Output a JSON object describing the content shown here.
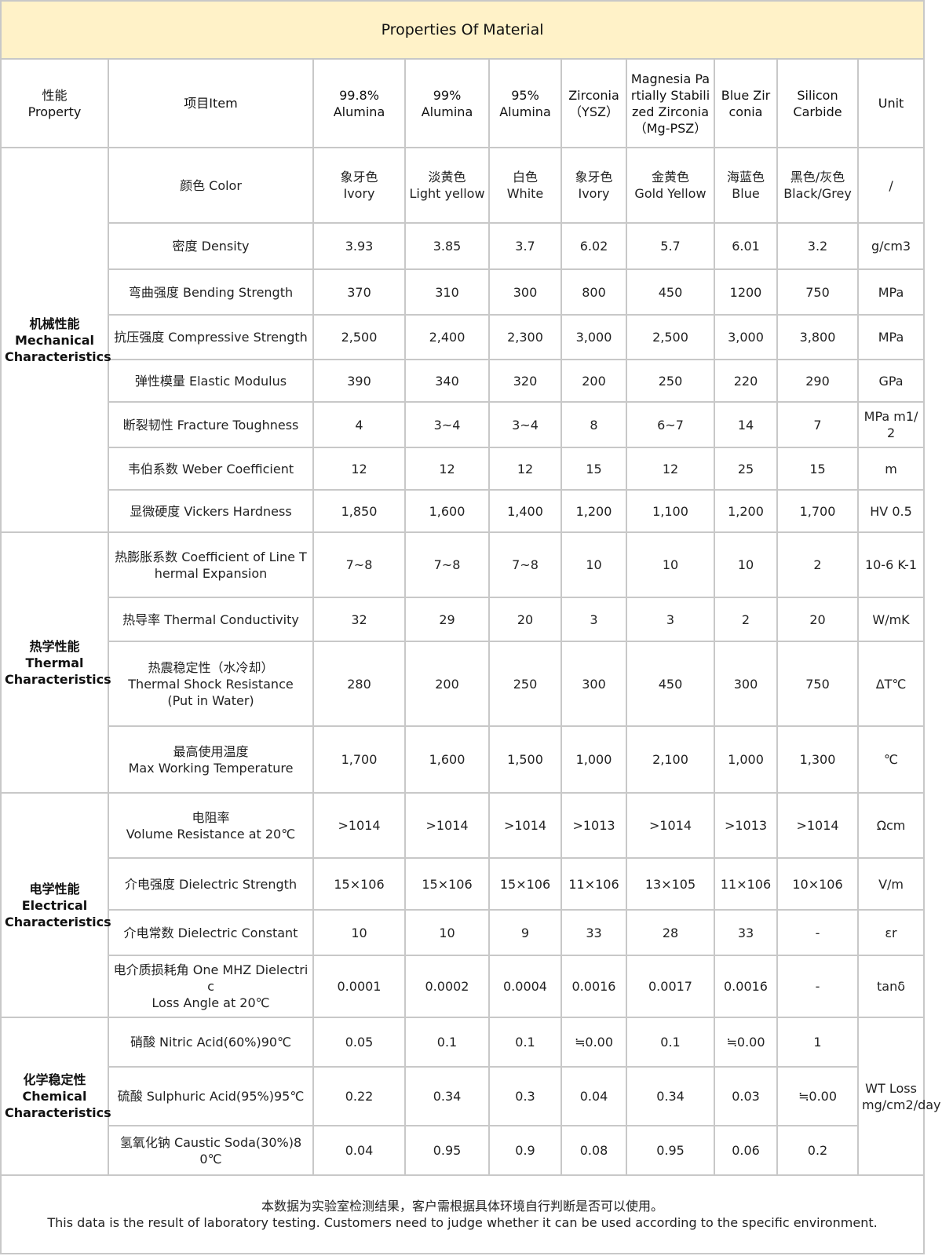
{
  "title": "Properties Of Material",
  "header": {
    "property": "性能\nProperty",
    "item": "项目Item",
    "materials": [
      "99.8%\nAlumina",
      "99%\nAlumina",
      "95%\nAlumina",
      "Zirconia\n（YSZ）",
      "Magnesia Partially Stabilized Zirconia（Mg-PSZ）",
      "Blue Zirconia",
      "Silicon\nCarbide"
    ],
    "unit": "Unit"
  },
  "groups": [
    {
      "name": "机械性能\nMechanical Characteristics",
      "rows": [
        {
          "item": "颜色 Color",
          "values": [
            "象牙色\nIvory",
            "淡黄色\nLight yellow",
            "白色\nWhite",
            "象牙色\nIvory",
            "金黄色\nGold Yellow",
            "海蓝色\nBlue",
            "黑色/灰色\nBlack/Grey"
          ],
          "unit": "/"
        },
        {
          "item": "密度 Density",
          "values": [
            "3.93",
            "3.85",
            "3.7",
            "6.02",
            "5.7",
            "6.01",
            "3.2"
          ],
          "unit": "g/cm3"
        },
        {
          "item": "弯曲强度 Bending Strength",
          "values": [
            "370",
            "310",
            "300",
            "800",
            "450",
            "1200",
            "750"
          ],
          "unit": "MPa"
        },
        {
          "item": "抗压强度 Compressive Strength",
          "values": [
            "2,500",
            "2,400",
            "2,300",
            "3,000",
            "2,500",
            "3,000",
            "3,800"
          ],
          "unit": "MPa"
        },
        {
          "item": "弹性模量 Elastic Modulus",
          "values": [
            "390",
            "340",
            "320",
            "200",
            "250",
            "220",
            "290"
          ],
          "unit": "GPa"
        },
        {
          "item": "断裂韧性 Fracture Toughness",
          "values": [
            "4",
            "3~4",
            "3~4",
            "8",
            "6~7",
            "14",
            "7"
          ],
          "unit": "MPa m1/2"
        },
        {
          "item": "韦伯系数 Weber Coefficient",
          "values": [
            "12",
            "12",
            "12",
            "15",
            "12",
            "25",
            "15"
          ],
          "unit": "m"
        },
        {
          "item": "显微硬度 Vickers Hardness",
          "values": [
            "1,850",
            "1,600",
            "1,400",
            "1,200",
            "1,100",
            "1,200",
            "1,700"
          ],
          "unit": "HV 0.5"
        }
      ]
    },
    {
      "name": "热学性能\nThermal Characteristics",
      "rows": [
        {
          "item": "热膨胀系数 Coefficient of Line Thermal Expansion",
          "values": [
            "7~8",
            "7~8",
            "7~8",
            "10",
            "10",
            "10",
            "2"
          ],
          "unit": "10-6 K-1"
        },
        {
          "item": "热导率 Thermal Conductivity",
          "values": [
            "32",
            "29",
            "20",
            "3",
            "3",
            "2",
            "20"
          ],
          "unit": "W/mK"
        },
        {
          "item": "热震稳定性（水冷却）\nThermal Shock Resistance\n(Put in Water)",
          "values": [
            "280",
            "200",
            "250",
            "300",
            "450",
            "300",
            "750"
          ],
          "unit": "ΔT℃"
        },
        {
          "item": "最高使用温度\nMax Working Temperature",
          "values": [
            "1,700",
            "1,600",
            "1,500",
            "1,000",
            "2,100",
            "1,000",
            "1,300"
          ],
          "unit": "℃"
        }
      ]
    },
    {
      "name": "电学性能\nElectrical Characteristics",
      "rows": [
        {
          "item": "电阻率\nVolume Resistance at 20℃",
          "values": [
            ">1014",
            ">1014",
            ">1014",
            ">1013",
            ">1014",
            ">1013",
            ">1014"
          ],
          "unit": "Ωcm"
        },
        {
          "item": "介电强度 Dielectric Strength",
          "values": [
            "15×106",
            "15×106",
            "15×106",
            "11×106",
            "13×105",
            "11×106",
            "10×106"
          ],
          "unit": "V/m"
        },
        {
          "item": "介电常数 Dielectric Constant",
          "values": [
            "10",
            "10",
            "9",
            "33",
            "28",
            "33",
            "-"
          ],
          "unit": "εr"
        },
        {
          "item": "电介质损耗角 One MHZ Dielectric\nLoss Angle at 20℃",
          "values": [
            "0.0001",
            "0.0002",
            "0.0004",
            "0.0016",
            "0.0017",
            "0.0016",
            "-"
          ],
          "unit": "tanδ"
        }
      ]
    },
    {
      "name": "化学稳定性\nChemical Characteristics",
      "shared_unit": "WT Loss mg/cm2/day",
      "rows": [
        {
          "item": "硝酸 Nitric Acid(60%)90℃",
          "values": [
            "0.05",
            "0.1",
            "0.1",
            "≒0.00",
            "0.1",
            "≒0.00",
            "1"
          ]
        },
        {
          "item": "硫酸 Sulphuric Acid(95%)95℃",
          "values": [
            "0.22",
            "0.34",
            "0.3",
            "0.04",
            "0.34",
            "0.03",
            "≒0.00"
          ]
        },
        {
          "item": "氢氧化钠 Caustic Soda(30%)80℃",
          "values": [
            "0.04",
            "0.95",
            "0.9",
            "0.08",
            "0.95",
            "0.06",
            "0.2"
          ]
        }
      ]
    }
  ],
  "footer": "本数据为实验室检测结果，客户需根据具体环境自行判断是否可以使用。\nThis data is the result of laboratory testing. Customers need to judge whether it can be used according to the specific environment."
}
